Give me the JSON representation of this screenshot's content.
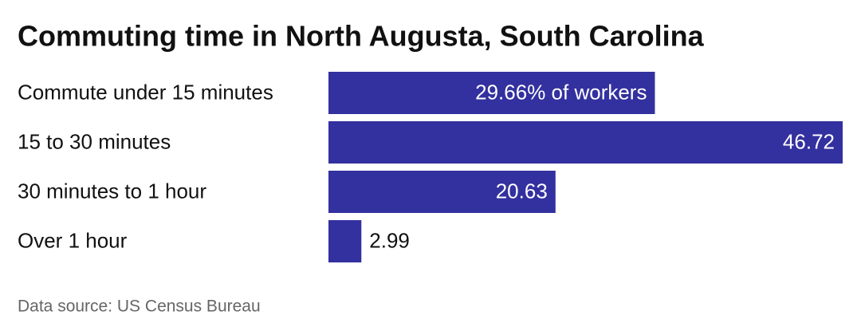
{
  "chart_data": {
    "type": "bar",
    "orientation": "horizontal",
    "title": "Commuting time in North Augusta, South Carolina",
    "categories": [
      "Commute under 15 minutes",
      "15 to 30 minutes",
      "30 minutes to 1 hour",
      "Over 1 hour"
    ],
    "values": [
      29.66,
      46.72,
      20.63,
      2.99
    ],
    "value_labels": [
      "29.66% of workers",
      "46.72",
      "20.63",
      "2.99"
    ],
    "color": "#33309f",
    "source": "Data source: US Census Bureau"
  }
}
